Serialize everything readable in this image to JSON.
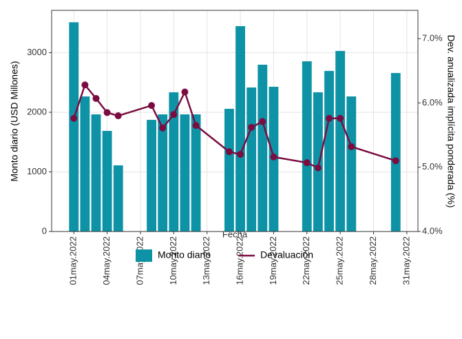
{
  "chart_data": {
    "type": "bar-line",
    "x_label": "Fecha",
    "y_label": "Monto diario (USD Millones)",
    "y2_label": "Dev. anualizada implícita ponderada (%)",
    "x": [
      "2022-05-01",
      "2022-05-02",
      "2022-05-03",
      "2022-05-04",
      "2022-05-05",
      "2022-05-08",
      "2022-05-09",
      "2022-05-10",
      "2022-05-11",
      "2022-05-12",
      "2022-05-15",
      "2022-05-16",
      "2022-05-17",
      "2022-05-18",
      "2022-05-19",
      "2022-05-22",
      "2022-05-23",
      "2022-05-24",
      "2022-05-25",
      "2022-05-26",
      "2022-05-30"
    ],
    "xlim": [
      "2022-04-29",
      "2022-06-01"
    ],
    "xticks": [
      {
        "value": "2022-05-01",
        "label": "01may.2022"
      },
      {
        "value": "2022-05-04",
        "label": "04may.2022"
      },
      {
        "value": "2022-05-07",
        "label": "07may.2022"
      },
      {
        "value": "2022-05-10",
        "label": "10may.2022"
      },
      {
        "value": "2022-05-13",
        "label": "13may.2022"
      },
      {
        "value": "2022-05-16",
        "label": "16may.2022"
      },
      {
        "value": "2022-05-19",
        "label": "19may.2022"
      },
      {
        "value": "2022-05-22",
        "label": "22may.2022"
      },
      {
        "value": "2022-05-25",
        "label": "25may.2022"
      },
      {
        "value": "2022-05-28",
        "label": "28may.2022"
      },
      {
        "value": "2022-05-31",
        "label": "31may.2022"
      }
    ],
    "ylim": [
      0,
      3710
    ],
    "yticks": [
      0,
      1000,
      2000,
      3000
    ],
    "y2lim": [
      4,
      7.44
    ],
    "y2ticks": [
      {
        "value": 4,
        "label": "4.0%"
      },
      {
        "value": 5,
        "label": "5.0%"
      },
      {
        "value": 6,
        "label": "6.0%"
      },
      {
        "value": 7,
        "label": "7.0%"
      }
    ],
    "grid": true,
    "legend": "bottom",
    "series": [
      {
        "name": "Monto diario",
        "type": "bar",
        "color": "#0e93a6",
        "values": [
          3510,
          2266,
          1965,
          1688,
          1110,
          1873,
          1965,
          2335,
          1965,
          1965,
          2058,
          3445,
          2416,
          2798,
          2428,
          2855,
          2335,
          2694,
          3029,
          2266,
          2659
        ]
      },
      {
        "name": "Devaluación",
        "type": "line",
        "axis": "y2",
        "color": "#7b0c41",
        "values": [
          5.76,
          6.28,
          6.07,
          5.85,
          5.8,
          5.96,
          5.61,
          5.82,
          6.17,
          5.65,
          5.24,
          5.2,
          5.62,
          5.71,
          5.16,
          5.07,
          4.99,
          5.76,
          5.76,
          5.32,
          5.1
        ]
      }
    ]
  }
}
